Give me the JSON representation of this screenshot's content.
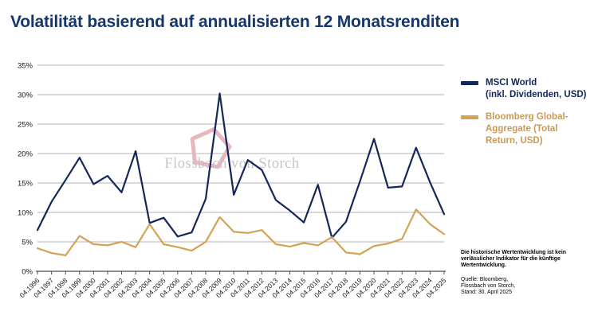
{
  "title": "Volatilität basierend auf annualisierten 12 Monatsrenditen",
  "watermark": {
    "text": "Flossbach von Storch",
    "text_color": "#c6c6c6",
    "logo_color": "#e8b6bd"
  },
  "legend": {
    "items": [
      {
        "label": "MSCI World\n(inkl. Dividenden, USD)",
        "color": "#13275a"
      },
      {
        "label": "Bloomberg Global-\nAggregate (Total\nReturn, USD)",
        "color": "#c89a55"
      }
    ]
  },
  "disclaimer": "Die historische Wertentwicklung ist kein\nverlässlicher Indikator für die künftige\nWertentwicklung.",
  "source": "Quelle: Bloomberg,\nFlossbach von Storch,\nStand: 30. April 2025",
  "chart_data": {
    "type": "line",
    "title": "Volatilität basierend auf annualisierten 12 Monatsrenditen",
    "xlabel": "",
    "ylabel": "",
    "ylim": [
      0,
      35
    ],
    "ytick_values": [
      0,
      5,
      10,
      15,
      20,
      25,
      30,
      35
    ],
    "ytick_labels": [
      "0%",
      "5%",
      "10%",
      "15%",
      "20%",
      "25%",
      "30%",
      "35%"
    ],
    "grid": true,
    "legend_position": "right",
    "x": [
      "04.1996",
      "04.1997",
      "04.1998",
      "04.1999",
      "04.2000",
      "04.2001",
      "04.2002",
      "04.2003",
      "04.2004",
      "04.2005",
      "04.2006",
      "04.2007",
      "04.2008",
      "04.2009",
      "04.2010",
      "04.2011",
      "04.2012",
      "04.2013",
      "04.2014",
      "04.2015",
      "04.2016",
      "04.2017",
      "04.2018",
      "04.2019",
      "04.2020",
      "04.2021",
      "04.2022",
      "04.2023",
      "04.2024",
      "04.2025"
    ],
    "series": [
      {
        "name": "MSCI World (inkl. Dividenden, USD)",
        "color": "#13275a",
        "values": [
          7.0,
          11.8,
          15.5,
          19.3,
          14.8,
          16.2,
          13.4,
          20.4,
          8.2,
          9.1,
          5.9,
          6.6,
          12.3,
          30.2,
          13.0,
          18.9,
          17.2,
          12.1,
          10.3,
          8.3,
          14.7,
          5.7,
          8.4,
          15.3,
          22.5,
          14.2,
          14.4,
          21.0,
          15.1,
          9.7
        ]
      },
      {
        "name": "Bloomberg Global-Aggregate (Total Return, USD)",
        "color": "#d3a255",
        "values": [
          3.9,
          3.1,
          2.7,
          6.0,
          4.6,
          4.4,
          5.0,
          4.1,
          8.0,
          4.6,
          4.1,
          3.5,
          5.0,
          9.2,
          6.7,
          6.5,
          7.0,
          4.6,
          4.2,
          4.8,
          4.4,
          5.8,
          3.2,
          2.9,
          4.3,
          4.7,
          5.5,
          10.5,
          8.0,
          6.3
        ]
      }
    ],
    "colors": {
      "grid": "#b3b3b3",
      "axis": "#4d4d4d",
      "tick_text": "#1a1a1a"
    }
  }
}
